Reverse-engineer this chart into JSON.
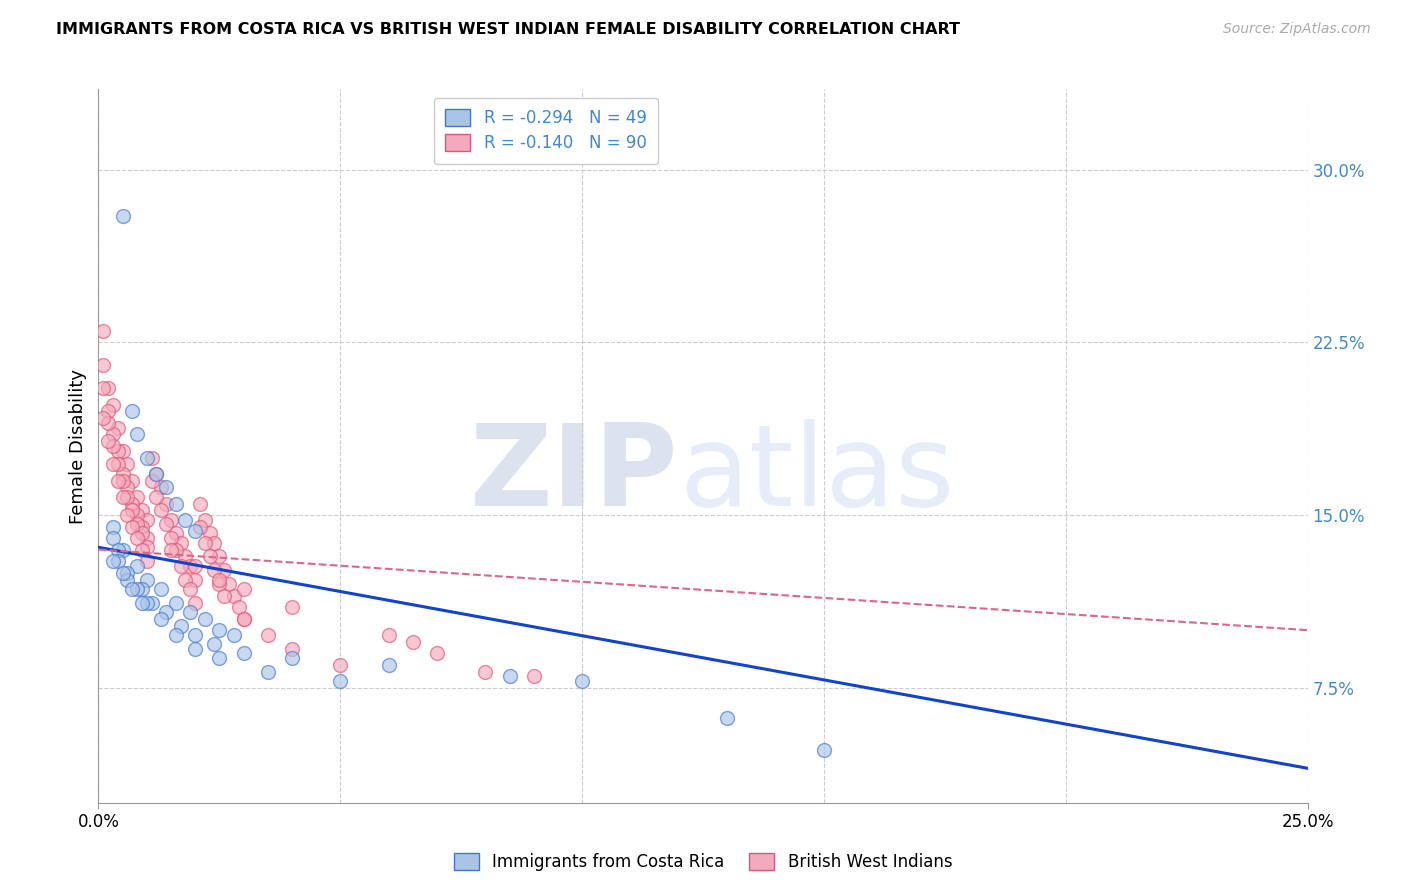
{
  "title": "IMMIGRANTS FROM COSTA RICA VS BRITISH WEST INDIAN FEMALE DISABILITY CORRELATION CHART",
  "source": "Source: ZipAtlas.com",
  "ylabel": "Female Disability",
  "right_yticks": [
    "30.0%",
    "22.5%",
    "15.0%",
    "7.5%"
  ],
  "right_ytick_vals": [
    0.3,
    0.225,
    0.15,
    0.075
  ],
  "xlim": [
    0.0,
    0.25
  ],
  "ylim": [
    0.025,
    0.335
  ],
  "legend_r_blue": "R = -0.294",
  "legend_n_blue": "N = 49",
  "legend_r_pink": "R = -0.140",
  "legend_n_pink": "N = 90",
  "legend_label_blue": "Immigrants from Costa Rica",
  "legend_label_pink": "British West Indians",
  "watermark_zip": "ZIP",
  "watermark_atlas": "atlas",
  "blue_color": "#aac4e8",
  "pink_color": "#f4aabc",
  "blue_edge_color": "#4477cc",
  "pink_edge_color": "#dd5577",
  "blue_line_color": "#1144cc",
  "pink_line_color": "#dd6688",
  "right_tick_color": "#4488cc",
  "scatter_alpha": 0.65,
  "scatter_size": 100,
  "blue_line_x0": 0.0,
  "blue_line_y0": 0.136,
  "blue_line_x1": 0.25,
  "blue_line_y1": 0.04,
  "pink_line_x0": 0.0,
  "pink_line_x1": 0.25,
  "pink_line_y0": 0.135,
  "pink_line_y1": 0.1,
  "blue_x": [
    0.003,
    0.005,
    0.007,
    0.008,
    0.01,
    0.012,
    0.014,
    0.016,
    0.018,
    0.02,
    0.003,
    0.005,
    0.008,
    0.01,
    0.013,
    0.016,
    0.019,
    0.022,
    0.025,
    0.028,
    0.004,
    0.006,
    0.009,
    0.011,
    0.014,
    0.017,
    0.02,
    0.024,
    0.03,
    0.04,
    0.004,
    0.006,
    0.008,
    0.01,
    0.013,
    0.016,
    0.02,
    0.025,
    0.035,
    0.05,
    0.003,
    0.005,
    0.007,
    0.009,
    0.06,
    0.085,
    0.1,
    0.13,
    0.15
  ],
  "blue_y": [
    0.145,
    0.28,
    0.195,
    0.185,
    0.175,
    0.168,
    0.162,
    0.155,
    0.148,
    0.143,
    0.14,
    0.135,
    0.128,
    0.122,
    0.118,
    0.112,
    0.108,
    0.105,
    0.1,
    0.098,
    0.135,
    0.125,
    0.118,
    0.112,
    0.108,
    0.102,
    0.098,
    0.094,
    0.09,
    0.088,
    0.13,
    0.122,
    0.118,
    0.112,
    0.105,
    0.098,
    0.092,
    0.088,
    0.082,
    0.078,
    0.13,
    0.125,
    0.118,
    0.112,
    0.085,
    0.08,
    0.078,
    0.062,
    0.048
  ],
  "pink_x": [
    0.001,
    0.002,
    0.003,
    0.004,
    0.005,
    0.006,
    0.007,
    0.008,
    0.009,
    0.01,
    0.001,
    0.002,
    0.003,
    0.004,
    0.005,
    0.006,
    0.007,
    0.008,
    0.009,
    0.01,
    0.001,
    0.002,
    0.003,
    0.004,
    0.005,
    0.006,
    0.007,
    0.008,
    0.009,
    0.01,
    0.001,
    0.002,
    0.003,
    0.004,
    0.005,
    0.006,
    0.007,
    0.008,
    0.009,
    0.01,
    0.011,
    0.012,
    0.013,
    0.014,
    0.015,
    0.016,
    0.017,
    0.018,
    0.019,
    0.02,
    0.011,
    0.012,
    0.013,
    0.014,
    0.015,
    0.016,
    0.017,
    0.018,
    0.019,
    0.02,
    0.021,
    0.022,
    0.023,
    0.024,
    0.025,
    0.026,
    0.027,
    0.028,
    0.029,
    0.03,
    0.021,
    0.022,
    0.023,
    0.024,
    0.025,
    0.026,
    0.03,
    0.035,
    0.04,
    0.05,
    0.015,
    0.02,
    0.025,
    0.03,
    0.04,
    0.06,
    0.065,
    0.07,
    0.08,
    0.09
  ],
  "pink_y": [
    0.23,
    0.205,
    0.198,
    0.188,
    0.178,
    0.172,
    0.165,
    0.158,
    0.152,
    0.148,
    0.215,
    0.195,
    0.185,
    0.178,
    0.168,
    0.162,
    0.155,
    0.15,
    0.145,
    0.14,
    0.205,
    0.19,
    0.18,
    0.172,
    0.165,
    0.158,
    0.152,
    0.146,
    0.142,
    0.136,
    0.192,
    0.182,
    0.172,
    0.165,
    0.158,
    0.15,
    0.145,
    0.14,
    0.135,
    0.13,
    0.175,
    0.168,
    0.162,
    0.155,
    0.148,
    0.142,
    0.138,
    0.132,
    0.128,
    0.122,
    0.165,
    0.158,
    0.152,
    0.146,
    0.14,
    0.135,
    0.128,
    0.122,
    0.118,
    0.112,
    0.155,
    0.148,
    0.142,
    0.138,
    0.132,
    0.126,
    0.12,
    0.115,
    0.11,
    0.105,
    0.145,
    0.138,
    0.132,
    0.126,
    0.12,
    0.115,
    0.105,
    0.098,
    0.092,
    0.085,
    0.135,
    0.128,
    0.122,
    0.118,
    0.11,
    0.098,
    0.095,
    0.09,
    0.082,
    0.08
  ]
}
